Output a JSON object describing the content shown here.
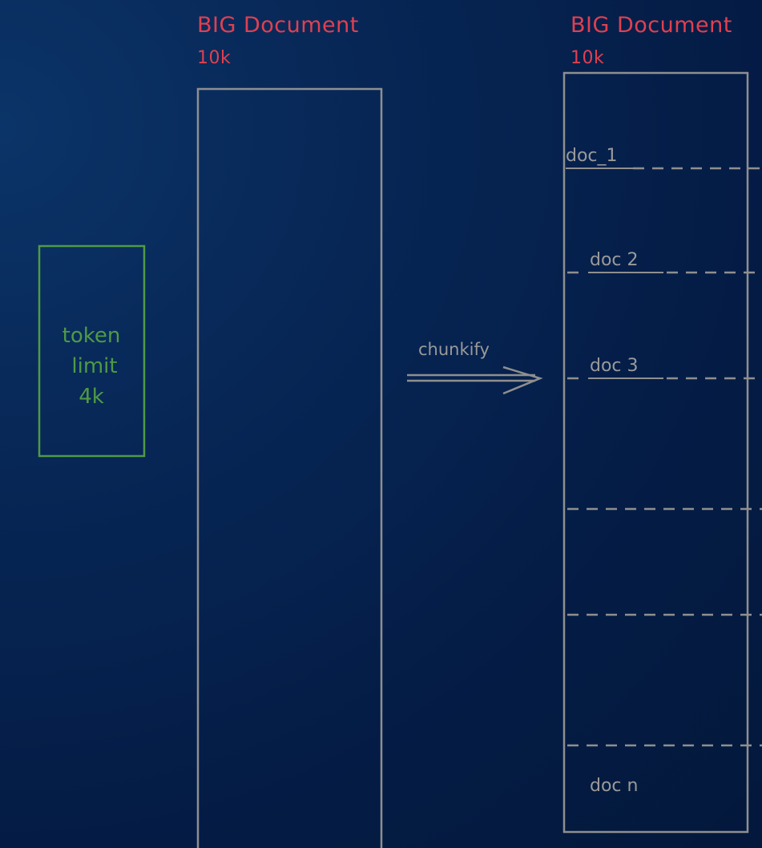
{
  "left_document": {
    "title": "BIG Document",
    "size": "10k"
  },
  "right_document": {
    "title": "BIG Document",
    "size": "10k",
    "chunks": [
      "doc_1",
      "doc 2",
      "doc 3",
      "doc n"
    ]
  },
  "token_box": {
    "lines": [
      "token",
      "limit",
      "4k"
    ]
  },
  "arrow": {
    "label": "chunkify"
  },
  "colors": {
    "title": "#e04050",
    "token_box": "#4f9a45",
    "sketch_lines": "#8f8f8f"
  }
}
